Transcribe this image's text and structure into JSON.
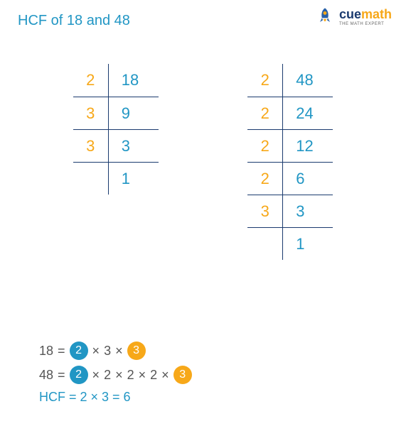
{
  "title": "HCF of 18 and 48",
  "logo": {
    "cue": "cue",
    "math": "math",
    "tagline": "THE MATH EXPERT"
  },
  "table1": {
    "number": 18,
    "rows": [
      {
        "divisor": "2",
        "quotient": "18"
      },
      {
        "divisor": "3",
        "quotient": "9"
      },
      {
        "divisor": "3",
        "quotient": "3"
      },
      {
        "divisor": "",
        "quotient": "1"
      }
    ],
    "colors": {
      "divisor": "#f7a819",
      "quotient": "#2196c4",
      "border": "#1a3a6e"
    }
  },
  "table2": {
    "number": 48,
    "rows": [
      {
        "divisor": "2",
        "quotient": "48"
      },
      {
        "divisor": "2",
        "quotient": "24"
      },
      {
        "divisor": "2",
        "quotient": "12"
      },
      {
        "divisor": "2",
        "quotient": "6"
      },
      {
        "divisor": "3",
        "quotient": "3"
      },
      {
        "divisor": "",
        "quotient": "1"
      }
    ],
    "colors": {
      "divisor": "#f7a819",
      "quotient": "#2196c4",
      "border": "#1a3a6e"
    }
  },
  "equations": {
    "line1": {
      "lhs": "18",
      "eq": "=",
      "factors": [
        {
          "val": "2",
          "circle": "blue"
        },
        {
          "val": "3",
          "circle": null
        },
        {
          "val": "3",
          "circle": "orange"
        }
      ]
    },
    "line2": {
      "lhs": "48",
      "eq": "=",
      "factors": [
        {
          "val": "2",
          "circle": "blue"
        },
        {
          "val": "2",
          "circle": null
        },
        {
          "val": "2",
          "circle": null
        },
        {
          "val": "2",
          "circle": null
        },
        {
          "val": "3",
          "circle": "orange"
        }
      ]
    },
    "result": "HCF = 2 × 3 = 6"
  },
  "styling": {
    "title_color": "#2196c4",
    "divisor_color": "#f7a819",
    "quotient_color": "#2196c4",
    "border_color": "#1a3a6e",
    "circle_blue": "#2196c4",
    "circle_orange": "#f7a819",
    "text_color": "#555555",
    "font_family": "Comic Sans MS",
    "title_fontsize": 20,
    "cell_fontsize": 22,
    "eq_fontsize": 18
  }
}
